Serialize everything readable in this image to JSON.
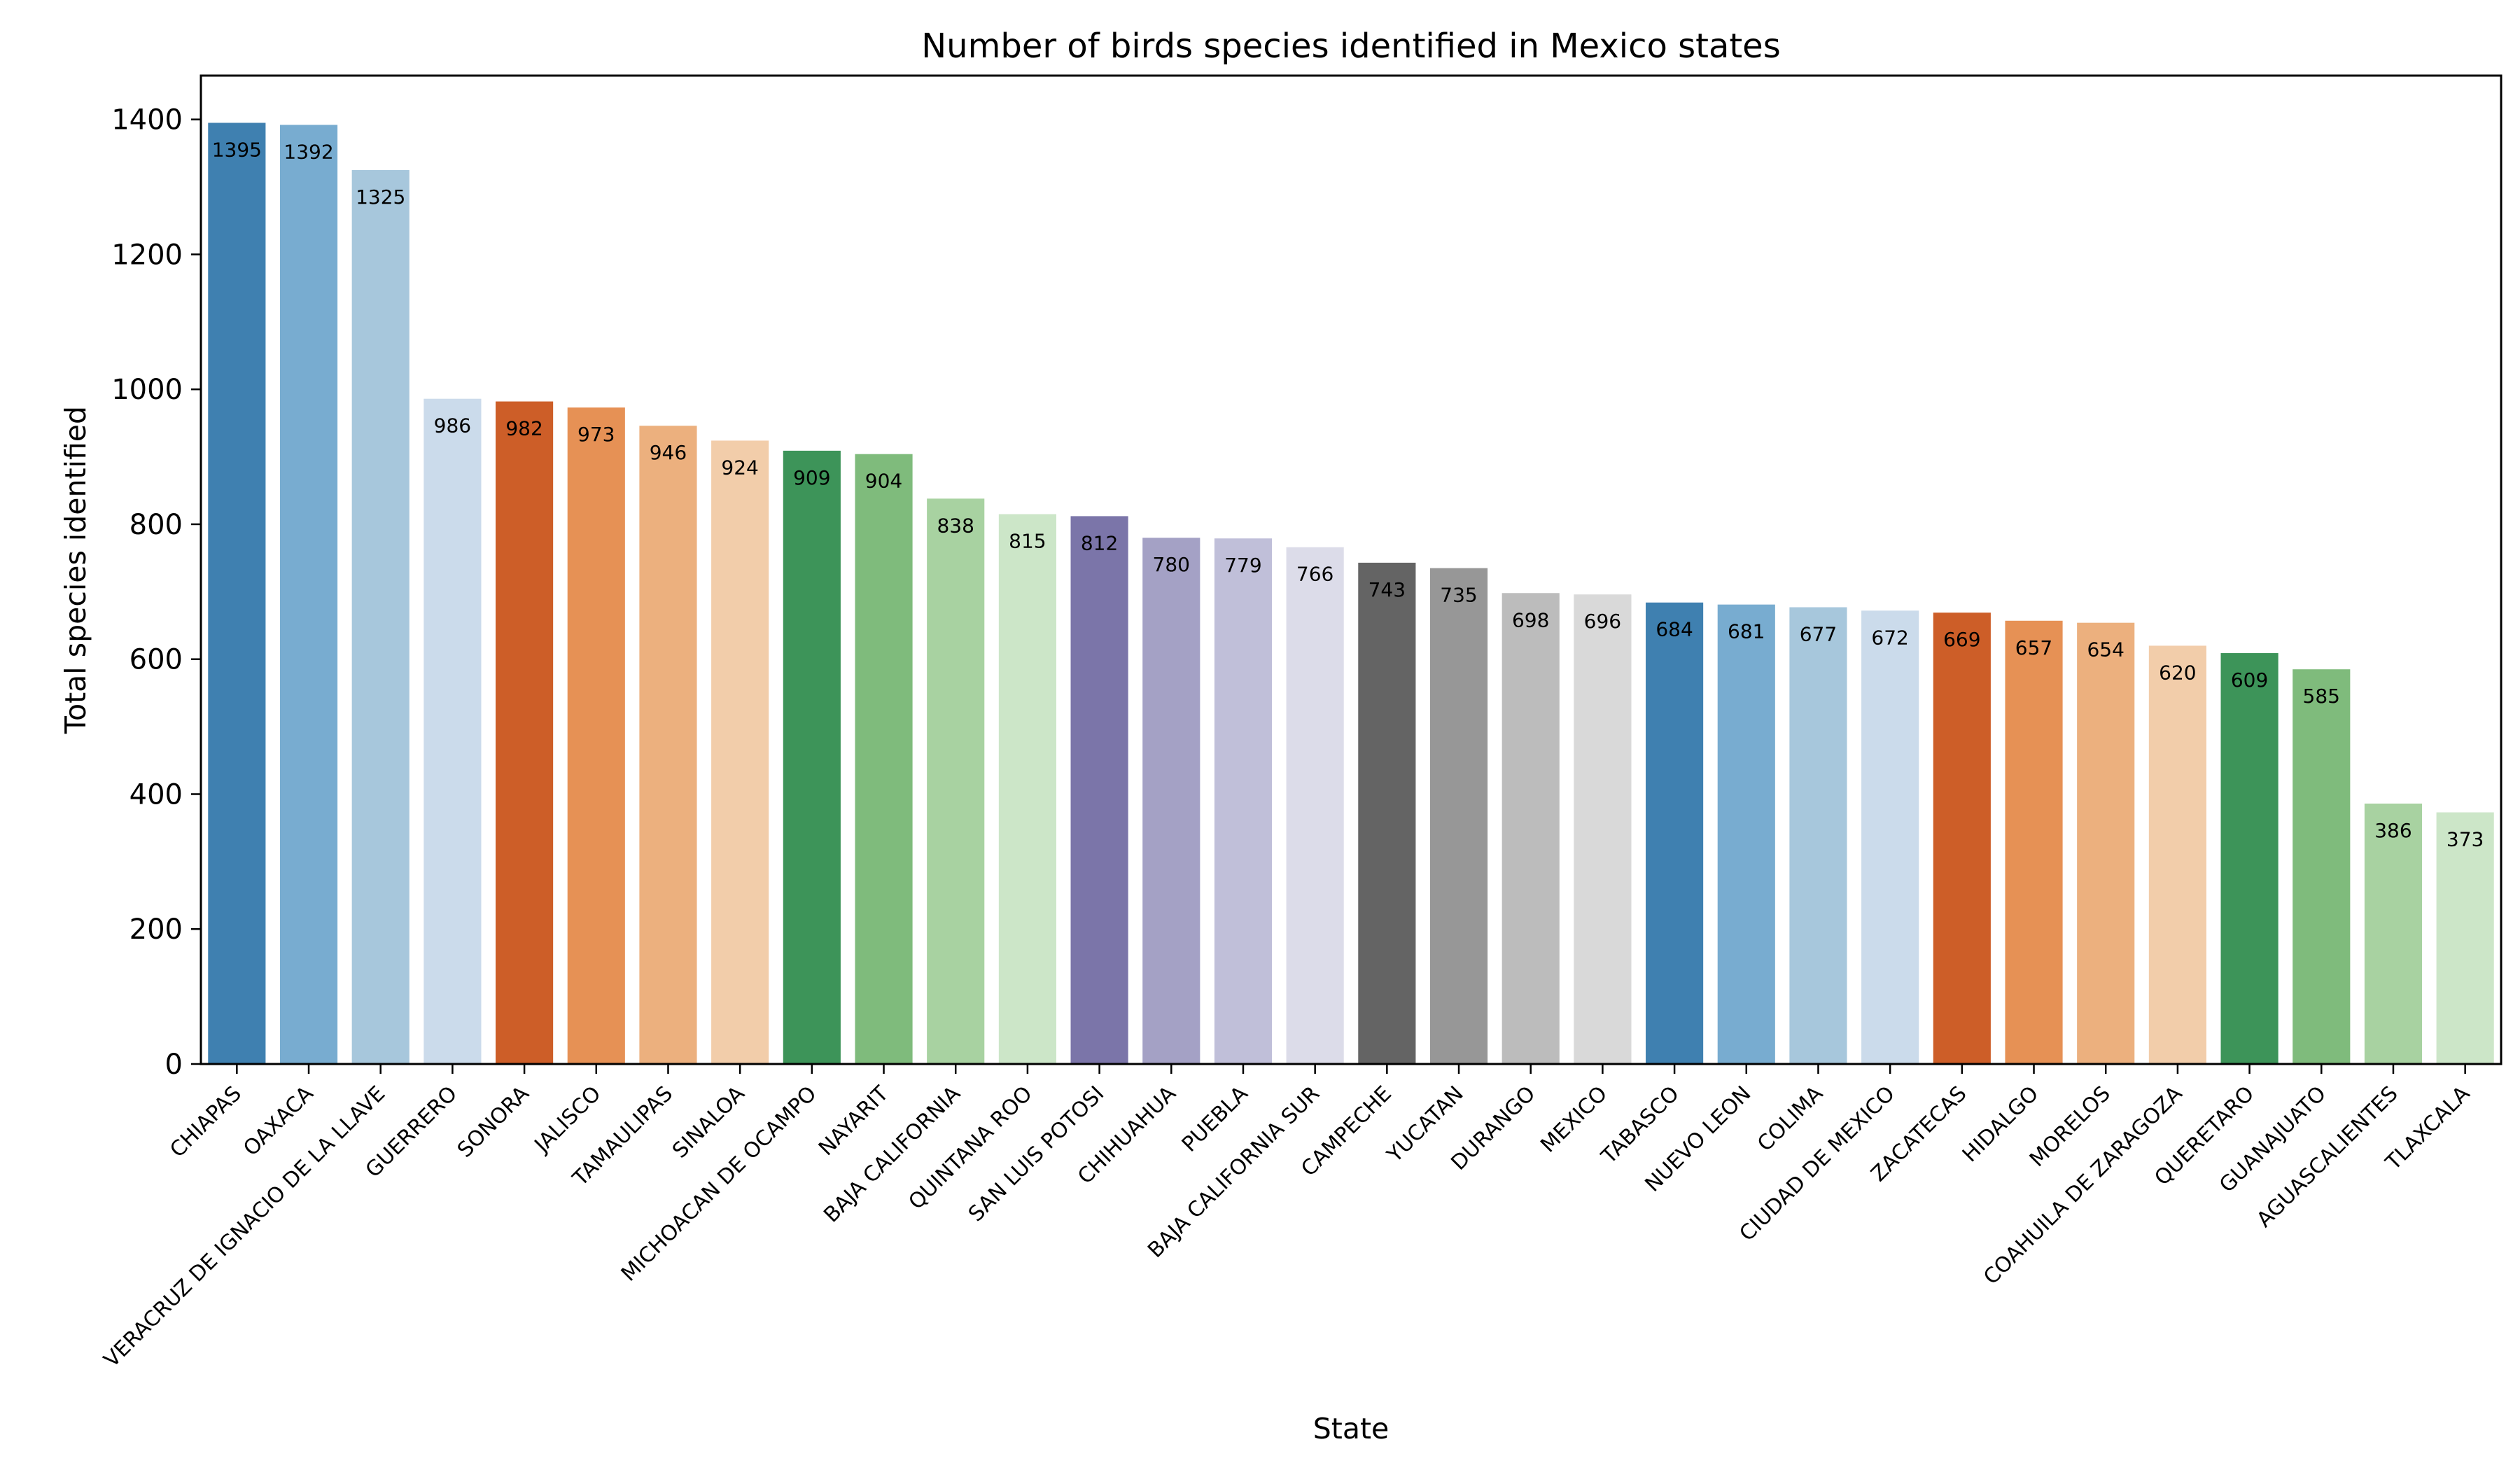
{
  "chart_data": {
    "type": "bar",
    "title": "Number of birds species identified in Mexico states",
    "xlabel": "State",
    "ylabel": "Total species identified",
    "ylim": [
      0,
      1465
    ],
    "yticks": [
      0,
      200,
      400,
      600,
      800,
      1000,
      1200,
      1400
    ],
    "grid": false,
    "legend": "none",
    "categories": [
      "CHIAPAS",
      "OAXACA",
      "VERACRUZ DE IGNACIO DE LA LLAVE",
      "GUERRERO",
      "SONORA",
      "JALISCO",
      "TAMAULIPAS",
      "SINALOA",
      "MICHOACAN DE OCAMPO",
      "NAYARIT",
      "BAJA CALIFORNIA",
      "QUINTANA ROO",
      "SAN LUIS POTOSI",
      "CHIHUAHUA",
      "PUEBLA",
      "BAJA CALIFORNIA SUR",
      "CAMPECHE",
      "YUCATAN",
      "DURANGO",
      "MEXICO",
      "TABASCO",
      "NUEVO LEON",
      "COLIMA",
      "CIUDAD DE MEXICO",
      "ZACATECAS",
      "HIDALGO",
      "MORELOS",
      "COAHUILA DE ZARAGOZA",
      "QUERETARO",
      "GUANAJUATO",
      "AGUASCALIENTES",
      "TLAXCALA"
    ],
    "values": [
      1395,
      1392,
      1325,
      986,
      982,
      973,
      946,
      924,
      909,
      904,
      838,
      815,
      812,
      780,
      779,
      766,
      743,
      735,
      698,
      696,
      684,
      681,
      677,
      672,
      669,
      657,
      654,
      620,
      609,
      585,
      386,
      373
    ],
    "colors": [
      "#3f80b0",
      "#78acd0",
      "#a7c7dc",
      "#cbdbeb",
      "#cd5e28",
      "#e69155",
      "#ecb07e",
      "#f2cdaa",
      "#3d9459",
      "#7fbb7c",
      "#a8d2a1",
      "#cce6c8",
      "#7b75a9",
      "#a4a1c5",
      "#c0bfd9",
      "#dcdce9",
      "#646464",
      "#979797",
      "#bcbcbc",
      "#d9d9d9",
      "#3f80b0",
      "#78acd0",
      "#a7c7dc",
      "#cbdbeb",
      "#cd5e28",
      "#e69155",
      "#ecb07e",
      "#f2cdaa",
      "#3d9459",
      "#7fbb7c",
      "#a8d2a1",
      "#cce6c8"
    ]
  }
}
